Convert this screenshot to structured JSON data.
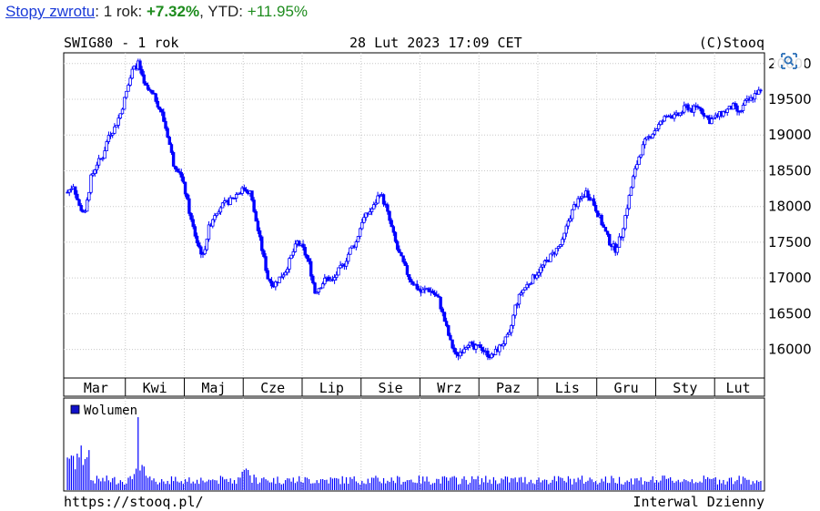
{
  "header": {
    "link_label": "Stopy zwrotu",
    "sep1": ": 1 rok: ",
    "one_year_return": "+7.32%",
    "sep2": ", YTD: ",
    "ytd_return": "+11.95%"
  },
  "chart_top": {
    "left": "SWIG80 - 1 rok",
    "center": "28 Lut 2023 17:09 CET",
    "right": "(C)Stooq"
  },
  "chart_bottom": {
    "left": "https://stooq.pl/",
    "right": "Interwal Dzienny"
  },
  "colors": {
    "candle": "#0000ff",
    "volume": "#0000ff",
    "grid": "#c8c8c8",
    "axis": "#000000",
    "positive": "#1e8c1e",
    "link": "#1a3ad8"
  },
  "chart_data": {
    "type": "candlestick",
    "title": "SWIG80 - 1 rok",
    "y_ticks": [
      16000,
      16500,
      17000,
      17500,
      18000,
      18500,
      19000,
      19500,
      20000
    ],
    "ylim": [
      15600,
      20150
    ],
    "x_ticks": [
      "Mar",
      "Kwi",
      "Maj",
      "Cze",
      "Lip",
      "Sie",
      "Wrz",
      "Paz",
      "Lis",
      "Gru",
      "Sty",
      "Lut"
    ],
    "close_series_approx": [
      {
        "month": "Mar",
        "values": [
          18200,
          18300,
          18000,
          17900,
          18400,
          18600,
          18700,
          19000,
          19100,
          19300
        ]
      },
      {
        "month": "Kwi",
        "values": [
          19600,
          19900,
          20000,
          19700,
          19600,
          19500,
          19300,
          19000,
          18600,
          18500
        ]
      },
      {
        "month": "Maj",
        "values": [
          18200,
          17800,
          17500,
          17300,
          17700,
          17900,
          18000,
          18050,
          18100,
          18200
        ]
      },
      {
        "month": "Cze",
        "values": [
          18250,
          18200,
          17800,
          17400,
          17000,
          16900,
          17000,
          17100,
          17300,
          17500
        ]
      },
      {
        "month": "Lip",
        "values": [
          17400,
          17200,
          16800,
          16900,
          17000,
          16950,
          17100,
          17200,
          17400,
          17500
        ]
      },
      {
        "month": "Sie",
        "values": [
          17800,
          17900,
          18000,
          18200,
          18000,
          17700,
          17400,
          17200,
          17000,
          16900
        ]
      },
      {
        "month": "Wrz",
        "values": [
          16800,
          16850,
          16800,
          16700,
          16400,
          16100,
          15900,
          16000,
          16100,
          16000
        ]
      },
      {
        "month": "Paz",
        "values": [
          16050,
          15950,
          15900,
          16000,
          16100,
          16200,
          16600,
          16800,
          16900,
          17000
        ]
      },
      {
        "month": "Lis",
        "values": [
          17100,
          17200,
          17300,
          17400,
          17500,
          17800,
          18000,
          18100,
          18200,
          18100
        ]
      },
      {
        "month": "Gru",
        "values": [
          17900,
          17700,
          17500,
          17400,
          17600,
          18000,
          18400,
          18700,
          18900,
          19000
        ]
      },
      {
        "month": "Sty",
        "values": [
          19100,
          19200,
          19300,
          19250,
          19300,
          19400,
          19350,
          19400,
          19300,
          19200
        ]
      },
      {
        "month": "Lut",
        "values": [
          19250,
          19300,
          19350,
          19400,
          19300,
          19450,
          19500,
          19600
        ]
      }
    ],
    "volume_label": "Wolumen"
  }
}
